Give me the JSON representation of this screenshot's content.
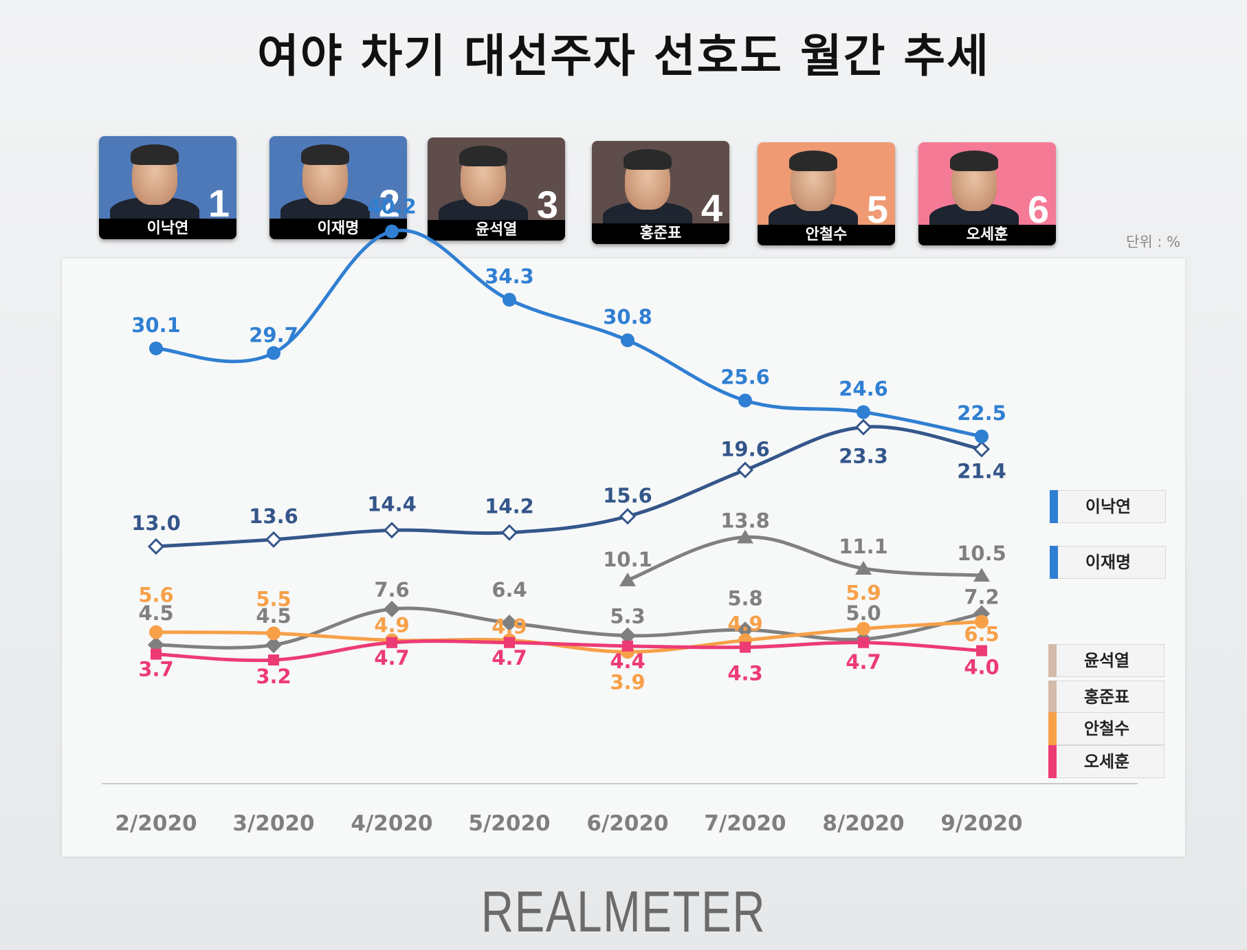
{
  "title": "여야 차기 대선주자 선호도 월간 추세",
  "unit_label": "단위 : %",
  "brand": "REALMETER",
  "candidates": [
    {
      "rank": "1",
      "name": "이낙연",
      "bg": "#4e79b8"
    },
    {
      "rank": "2",
      "name": "이재명",
      "bg": "#4e79b8"
    },
    {
      "rank": "3",
      "name": "윤석열",
      "bg": "#5e4d4a"
    },
    {
      "rank": "4",
      "name": "홍준표",
      "bg": "#5e4d4a"
    },
    {
      "rank": "5",
      "name": "안철수",
      "bg": "#ef9a72"
    },
    {
      "rank": "6",
      "name": "오세훈",
      "bg": "#f47a96"
    }
  ],
  "legend": [
    {
      "label": "이낙연",
      "color": "#2f7fd2"
    },
    {
      "label": "이재명",
      "color": "#2f7fd2"
    },
    {
      "label": "윤석열",
      "color": "#d4bba9"
    },
    {
      "label": "홍준표",
      "color": "#d4bba9"
    },
    {
      "label": "안철수",
      "color": "#f7a048"
    },
    {
      "label": "오세훈",
      "color": "#ec3b74"
    }
  ],
  "chart_data": {
    "type": "line",
    "title": "여야 차기 대선주자 선호도 월간 추세",
    "xlabel": "",
    "ylabel": "",
    "unit": "%",
    "categories": [
      "2/2020",
      "3/2020",
      "4/2020",
      "5/2020",
      "6/2020",
      "7/2020",
      "8/2020",
      "9/2020"
    ],
    "ylim": [
      0,
      45
    ],
    "grid": false,
    "legend_position": "right",
    "series": [
      {
        "name": "이낙연",
        "color": "#2f7fd2",
        "marker": "circle",
        "values": [
          30.1,
          29.7,
          40.2,
          34.3,
          30.8,
          25.6,
          24.6,
          22.5
        ]
      },
      {
        "name": "이재명",
        "color": "#34568a",
        "marker": "diamond",
        "values": [
          13.0,
          13.6,
          14.4,
          14.2,
          15.6,
          19.6,
          23.3,
          21.4
        ]
      },
      {
        "name": "윤석열",
        "color": "#808080",
        "marker": "triangle",
        "values": [
          null,
          null,
          null,
          null,
          10.1,
          13.8,
          11.1,
          10.5
        ]
      },
      {
        "name": "홍준표",
        "color": "#7f7f7f",
        "marker": "diamond",
        "values": [
          4.5,
          4.5,
          7.6,
          6.4,
          5.3,
          5.8,
          5.0,
          7.2
        ]
      },
      {
        "name": "안철수",
        "color": "#f7a048",
        "marker": "circle",
        "values": [
          5.6,
          5.5,
          4.9,
          4.9,
          3.9,
          4.9,
          5.9,
          6.5
        ]
      },
      {
        "name": "오세훈",
        "color": "#ec3b74",
        "marker": "square",
        "values": [
          3.7,
          3.2,
          4.7,
          4.7,
          4.4,
          4.3,
          4.7,
          4.0
        ]
      }
    ]
  }
}
